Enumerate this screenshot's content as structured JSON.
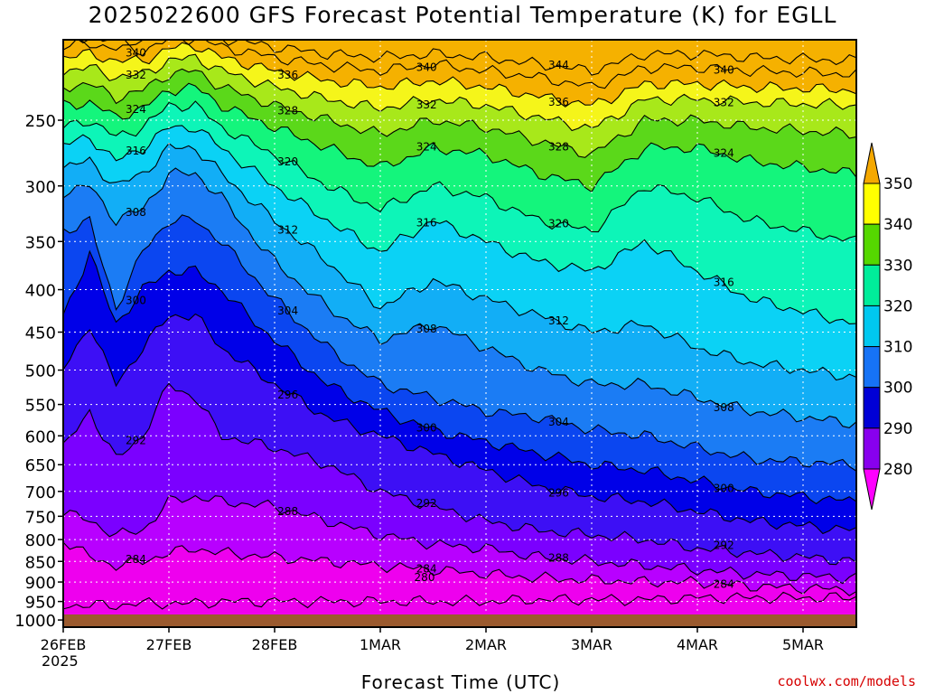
{
  "title": "2025022600 GFS Forecast Potential Temperature (K) for EGLL",
  "xlabel": "Forecast Time (UTC)",
  "credit": "coolwx.com/models",
  "year": "2025",
  "colors": {
    "terrain": "#9b5a2e",
    "levels": [
      "#ee00ee",
      "#b800ff",
      "#7b00ff",
      "#3d0ff5",
      "#0000e8",
      "#0b46f0",
      "#1b7cf4",
      "#12aef6",
      "#0bd2f5",
      "#0df5b8",
      "#14f57c",
      "#5bd81a",
      "#a8e81a",
      "#f5f51a",
      "#f5b100"
    ]
  },
  "colorbar": {
    "labels": [
      "350",
      "340",
      "330",
      "320",
      "310",
      "300",
      "290",
      "280"
    ],
    "colors": [
      "#f5a800",
      "#ffff00",
      "#55d800",
      "#00ed9a",
      "#00c8f0",
      "#1673f6",
      "#0000d6",
      "#8800ee",
      "#ff00ff"
    ]
  },
  "chart_data": {
    "type": "contour",
    "title": "2025022600 GFS Forecast Potential Temperature (K) for EGLL",
    "xlabel": "Forecast Time (UTC)",
    "ylabel": "",
    "x_ticks": [
      "26FEB",
      "27FEB",
      "28FEB",
      "1MAR",
      "2MAR",
      "3MAR",
      "4MAR",
      "5MAR"
    ],
    "y_ticks": [
      "250",
      "300",
      "350",
      "400",
      "450",
      "500",
      "550",
      "600",
      "650",
      "700",
      "750",
      "800",
      "850",
      "900",
      "950",
      "1000"
    ],
    "y_scale": "log-pressure",
    "y_range_hPa": [
      200,
      1020
    ],
    "grid": "dotted",
    "contour_interval_K": 4,
    "fill_interval_K": 10,
    "colorbar_range_K": [
      280,
      350
    ],
    "contours": [
      {
        "level": 284,
        "p": [
          800,
          840,
          860,
          850,
          830,
          820,
          830,
          840,
          850,
          860,
          870,
          880,
          890,
          895,
          900,
          900,
          910,
          920
        ]
      },
      {
        "level": 288,
        "p": [
          740,
          760,
          790,
          780,
          720,
          710,
          720,
          730,
          760,
          790,
          810,
          820,
          840,
          850,
          860,
          870,
          880,
          890
        ]
      },
      {
        "level": 292,
        "p": [
          620,
          560,
          640,
          600,
          520,
          540,
          600,
          620,
          650,
          700,
          730,
          760,
          780,
          790,
          800,
          820,
          830,
          850
        ]
      },
      {
        "level": 296,
        "p": [
          500,
          440,
          520,
          470,
          430,
          430,
          470,
          520,
          570,
          600,
          630,
          660,
          690,
          710,
          720,
          740,
          760,
          780
        ]
      },
      {
        "level": 300,
        "p": [
          430,
          360,
          440,
          400,
          380,
          380,
          400,
          460,
          520,
          560,
          590,
          610,
          630,
          650,
          660,
          680,
          700,
          720
        ]
      },
      {
        "level": 304,
        "p": [
          340,
          330,
          420,
          360,
          330,
          330,
          350,
          410,
          470,
          520,
          540,
          560,
          570,
          590,
          600,
          620,
          640,
          650
        ]
      },
      {
        "level": 308,
        "p": [
          305,
          300,
          330,
          320,
          290,
          290,
          310,
          370,
          420,
          460,
          440,
          470,
          500,
          520,
          520,
          540,
          560,
          580
        ]
      },
      {
        "level": 312,
        "p": [
          285,
          280,
          300,
          290,
          270,
          270,
          290,
          330,
          370,
          420,
          390,
          410,
          430,
          450,
          440,
          470,
          490,
          510
        ]
      },
      {
        "level": 316,
        "p": [
          268,
          262,
          280,
          270,
          255,
          255,
          270,
          300,
          330,
          360,
          330,
          350,
          370,
          380,
          350,
          380,
          410,
          440
        ]
      },
      {
        "level": 320,
        "p": [
          255,
          250,
          262,
          255,
          240,
          240,
          255,
          275,
          300,
          320,
          300,
          310,
          330,
          340,
          300,
          310,
          330,
          350
        ]
      },
      {
        "level": 324,
        "p": [
          240,
          238,
          248,
          242,
          230,
          228,
          240,
          255,
          270,
          285,
          270,
          275,
          290,
          300,
          270,
          270,
          280,
          290
        ]
      },
      {
        "level": 328,
        "p": [
          228,
          226,
          235,
          230,
          220,
          218,
          228,
          240,
          250,
          260,
          250,
          255,
          265,
          275,
          250,
          250,
          255,
          260
        ]
      },
      {
        "level": 332,
        "p": [
          218,
          216,
          222,
          220,
          212,
          210,
          218,
          228,
          236,
          242,
          236,
          240,
          248,
          256,
          236,
          236,
          238,
          240
        ]
      },
      {
        "level": 336,
        "p": [
          210,
          208,
          212,
          212,
          205,
          203,
          210,
          218,
          224,
          228,
          224,
          228,
          234,
          240,
          226,
          226,
          228,
          230
        ]
      },
      {
        "level": 340,
        "p": [
          204,
          202,
          205,
          206,
          200,
          199,
          204,
          210,
          215,
          218,
          214,
          218,
          222,
          228,
          216,
          216,
          218,
          220
        ]
      },
      {
        "level": 344,
        "p": [
          200,
          199,
          200,
          201,
          197,
          196,
          199,
          204,
          208,
          210,
          208,
          210,
          214,
          218,
          208,
          208,
          210,
          212
        ]
      }
    ],
    "contour_time_days": [
      0,
      0.25,
      0.5,
      0.75,
      1,
      1.25,
      1.5,
      2,
      2.5,
      3,
      3.5,
      4,
      4.5,
      5,
      5.5,
      6,
      6.5,
      7.5
    ],
    "contour_labels": [
      "344",
      "340",
      "336",
      "332",
      "328",
      "324",
      "320",
      "316",
      "312",
      "308",
      "304",
      "300",
      "296",
      "292",
      "288",
      "284",
      "280"
    ]
  }
}
